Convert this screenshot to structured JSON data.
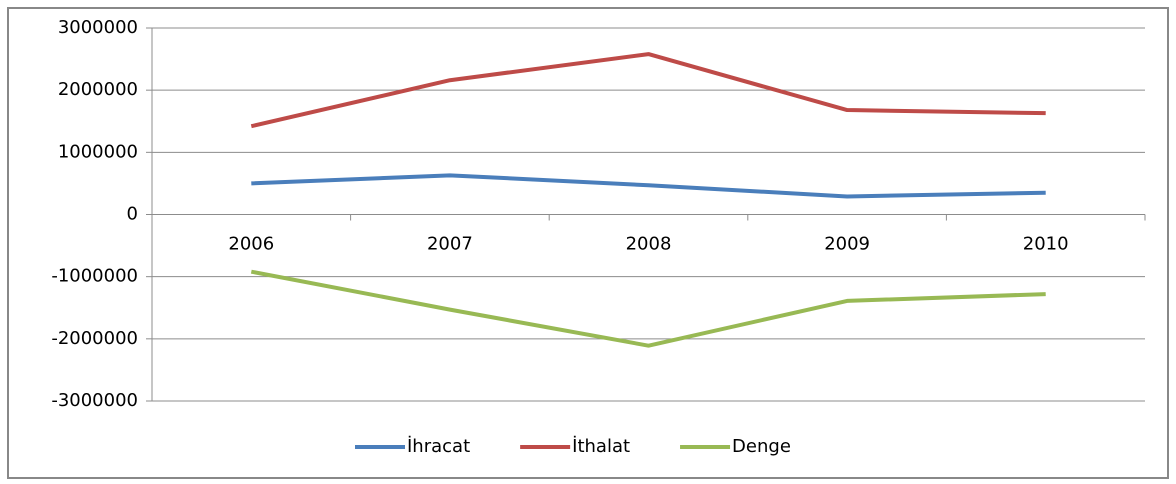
{
  "chart_data": {
    "type": "line",
    "categories": [
      "2006",
      "2007",
      "2008",
      "2009",
      "2010"
    ],
    "series": [
      {
        "name": "İhracat",
        "color": "#4a7ebb",
        "values": [
          500000,
          630000,
          470000,
          290000,
          350000
        ]
      },
      {
        "name": "İthalat",
        "color": "#be4b48",
        "values": [
          1420000,
          2160000,
          2580000,
          1680000,
          1630000
        ]
      },
      {
        "name": "Denge",
        "color": "#98b954",
        "values": [
          -920000,
          -1530000,
          -2110000,
          -1390000,
          -1280000
        ]
      }
    ],
    "ylim": [
      -3000000,
      3000000
    ],
    "yticks": [
      -3000000,
      -2000000,
      -1000000,
      0,
      1000000,
      2000000,
      3000000
    ],
    "grid": true,
    "legend": "bottom"
  }
}
